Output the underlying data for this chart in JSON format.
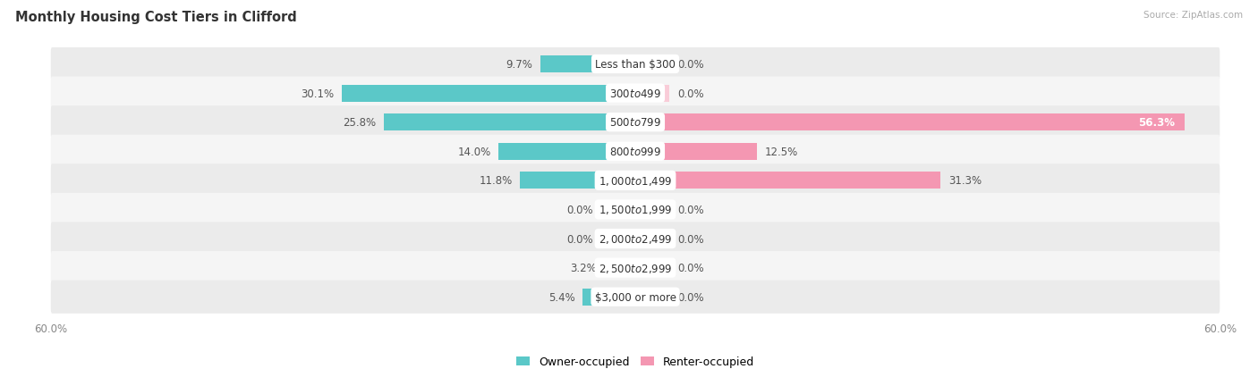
{
  "title": "Monthly Housing Cost Tiers in Clifford",
  "source": "Source: ZipAtlas.com",
  "categories": [
    "Less than $300",
    "$300 to $499",
    "$500 to $799",
    "$800 to $999",
    "$1,000 to $1,499",
    "$1,500 to $1,999",
    "$2,000 to $2,499",
    "$2,500 to $2,999",
    "$3,000 or more"
  ],
  "owner_values": [
    9.7,
    30.1,
    25.8,
    14.0,
    11.8,
    0.0,
    0.0,
    3.2,
    5.4
  ],
  "renter_values": [
    0.0,
    0.0,
    56.3,
    12.5,
    31.3,
    0.0,
    0.0,
    0.0,
    0.0
  ],
  "owner_color": "#5bc8c8",
  "renter_color": "#f497b2",
  "owner_color_light": "#a8dede",
  "renter_color_light": "#f9ccd8",
  "max_value": 60.0,
  "bar_height": 0.58,
  "row_bg_even": "#ebebeb",
  "row_bg_odd": "#f5f5f5",
  "bg_color": "#ffffff",
  "title_fontsize": 10.5,
  "label_fontsize": 8.5,
  "value_fontsize": 8.5,
  "axis_label_fontsize": 8.5,
  "legend_fontsize": 9.0,
  "min_stub": 3.5
}
